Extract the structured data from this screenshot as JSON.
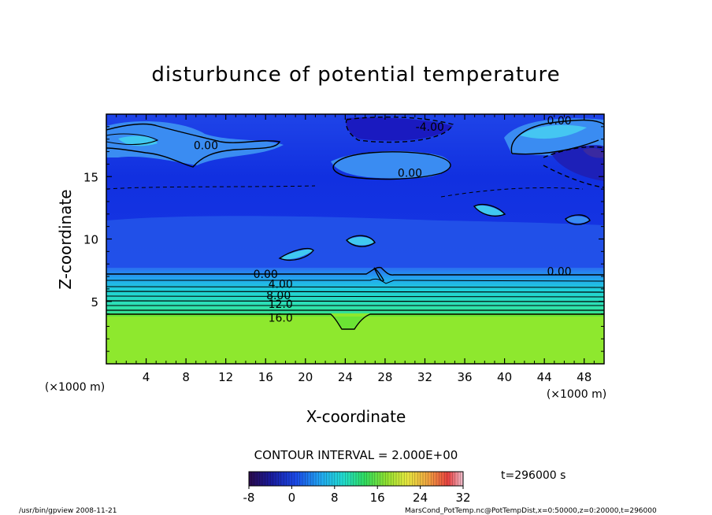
{
  "chart_data": {
    "type": "heatmap",
    "title": "disturbunce of potential temperature",
    "xlabel": "X-coordinate",
    "ylabel": "Z-coordinate",
    "x_unit_left": "(×1000 m)",
    "x_unit_right": "(×1000 m)",
    "xlim": [
      0,
      50
    ],
    "ylim": [
      0,
      20
    ],
    "xticks": [
      4,
      8,
      12,
      16,
      20,
      24,
      28,
      32,
      36,
      40,
      44,
      48
    ],
    "yticks": [
      5,
      10,
      15
    ],
    "contour_labels": [
      {
        "text": "0.00",
        "x": 10,
        "y": 17.5
      },
      {
        "text": "0.00",
        "x": 30.5,
        "y": 15.3
      },
      {
        "text": "-4.00",
        "x": 32.5,
        "y": 19.0
      },
      {
        "text": "0.00",
        "x": 45.5,
        "y": 19.5
      },
      {
        "text": "0.00",
        "x": 16,
        "y": 7.2
      },
      {
        "text": "4.00",
        "x": 17.5,
        "y": 6.4
      },
      {
        "text": "8.00",
        "x": 17.3,
        "y": 5.5
      },
      {
        "text": "12.0",
        "x": 17.5,
        "y": 4.8
      },
      {
        "text": "16.0",
        "x": 17.5,
        "y": 3.7
      },
      {
        "text": "0.00",
        "x": 45.5,
        "y": 7.4
      }
    ],
    "contour_interval_text": "CONTOUR INTERVAL = 2.000E+00",
    "time_text": "t=296000 s",
    "colorbar": {
      "min": -8,
      "max": 32,
      "ticks": [
        "-8",
        "0",
        "8",
        "16",
        "24",
        "32"
      ]
    }
  },
  "footer": {
    "left": "/usr/bin/gpview   2008-11-21",
    "right": "MarsCond_PotTemp.nc@PotTempDist,x=0:50000,z=0:20000,t=296000"
  },
  "colors": {
    "cold": "#0a1cd8",
    "mid": "#2a6ef0",
    "zero": "#1fc4ea",
    "warm": "#9be830"
  }
}
